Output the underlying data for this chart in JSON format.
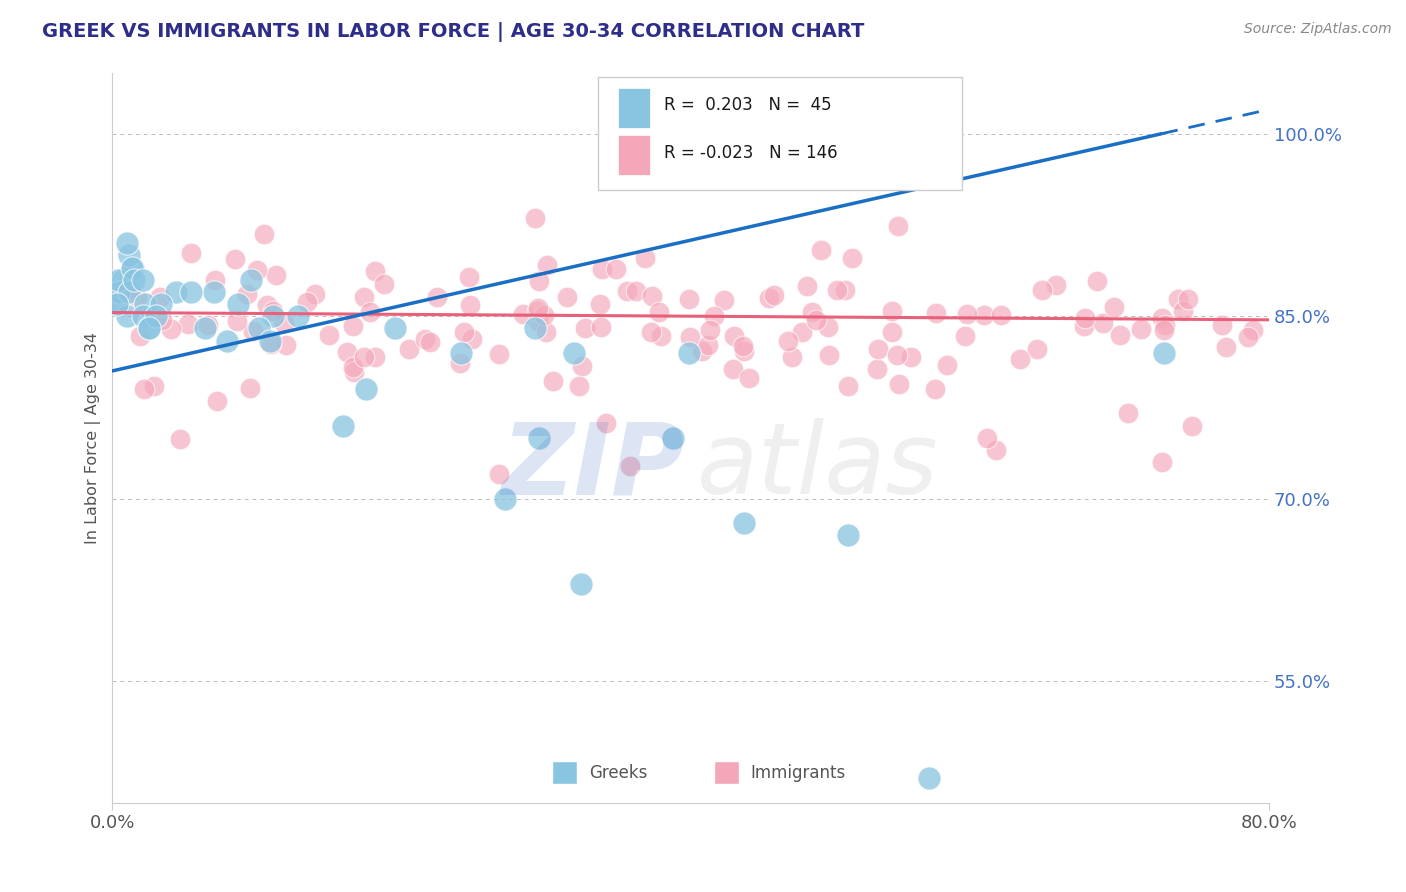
{
  "title": "GREEK VS IMMIGRANTS IN LABOR FORCE | AGE 30-34 CORRELATION CHART",
  "source_text": "Source: ZipAtlas.com",
  "ylabel": "In Labor Force | Age 30-34",
  "xlim": [
    0.0,
    80.0
  ],
  "ylim": [
    45.0,
    105.0
  ],
  "yticks": [
    55.0,
    70.0,
    85.0,
    100.0
  ],
  "ytick_labels": [
    "55.0%",
    "70.0%",
    "85.0%",
    "100.0%"
  ],
  "xtick_labels": [
    "0.0%",
    "80.0%"
  ],
  "blue_R": 0.203,
  "blue_N": 45,
  "pink_R": -0.023,
  "pink_N": 146,
  "blue_color": "#89c4e1",
  "pink_color": "#f4a7b9",
  "blue_line_color": "#1a6fc4",
  "pink_line_color": "#e8607a",
  "title_color": "#2e2e8a",
  "source_color": "#888888",
  "ytick_color": "#4472c4",
  "xtick_color": "#555555",
  "ylabel_color": "#555555",
  "watermark_zip_color": "#4472c4",
  "watermark_atlas_color": "#aaaaaa",
  "legend_label_greeks": "Greeks",
  "legend_label_immigrants": "Immigrants",
  "blue_line_y0": 80.5,
  "blue_line_y1": 102.0,
  "pink_line_y0": 85.3,
  "pink_line_y1": 84.7,
  "dashed_line_color": "#aaaaaa",
  "grid_line_color": "#dddddd"
}
